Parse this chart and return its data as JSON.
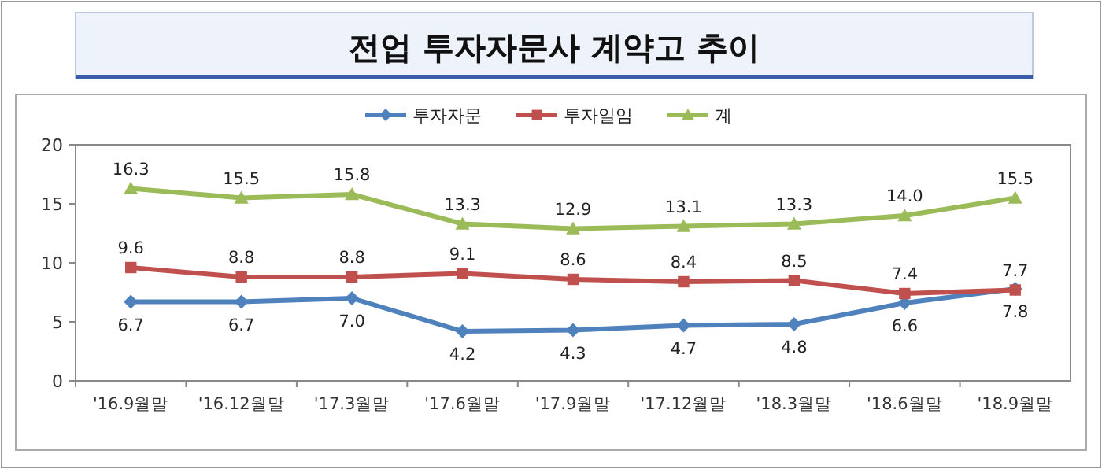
{
  "chart_data": {
    "type": "line",
    "title": "전업 투자자문사 계약고 추이",
    "categories": [
      "'16.9월말",
      "'16.12월말",
      "'17.3월말",
      "'17.6월말",
      "'17.9월말",
      "'17.12월말",
      "'18.3월말",
      "'18.6월말",
      "'18.9월말"
    ],
    "series": [
      {
        "name": "투자자문",
        "color": "#4f81bd",
        "marker": "diamond",
        "values": [
          6.7,
          6.7,
          7.0,
          4.2,
          4.3,
          4.7,
          4.8,
          6.6,
          7.8
        ],
        "value_labels": [
          "6.7",
          "6.7",
          "7.0",
          "4.2",
          "4.3",
          "4.7",
          "4.8",
          "6.6",
          "7.8"
        ]
      },
      {
        "name": "투자일임",
        "color": "#c0504d",
        "marker": "square",
        "values": [
          9.6,
          8.8,
          8.8,
          9.1,
          8.6,
          8.4,
          8.5,
          7.4,
          7.7
        ],
        "value_labels": [
          "9.6",
          "8.8",
          "8.8",
          "9.1",
          "8.6",
          "8.4",
          "8.5",
          "7.4",
          "7.7"
        ]
      },
      {
        "name": "계",
        "color": "#9bbb59",
        "marker": "triangle",
        "values": [
          16.3,
          15.5,
          15.8,
          13.3,
          12.9,
          13.1,
          13.3,
          14.0,
          15.5
        ],
        "value_labels": [
          "16.3",
          "15.5",
          "15.8",
          "13.3",
          "12.9",
          "13.1",
          "13.3",
          "14.0",
          "15.5"
        ]
      }
    ],
    "ylim": [
      0,
      20
    ],
    "yticks": [
      0,
      5,
      10,
      15,
      20
    ],
    "legend": "top"
  }
}
